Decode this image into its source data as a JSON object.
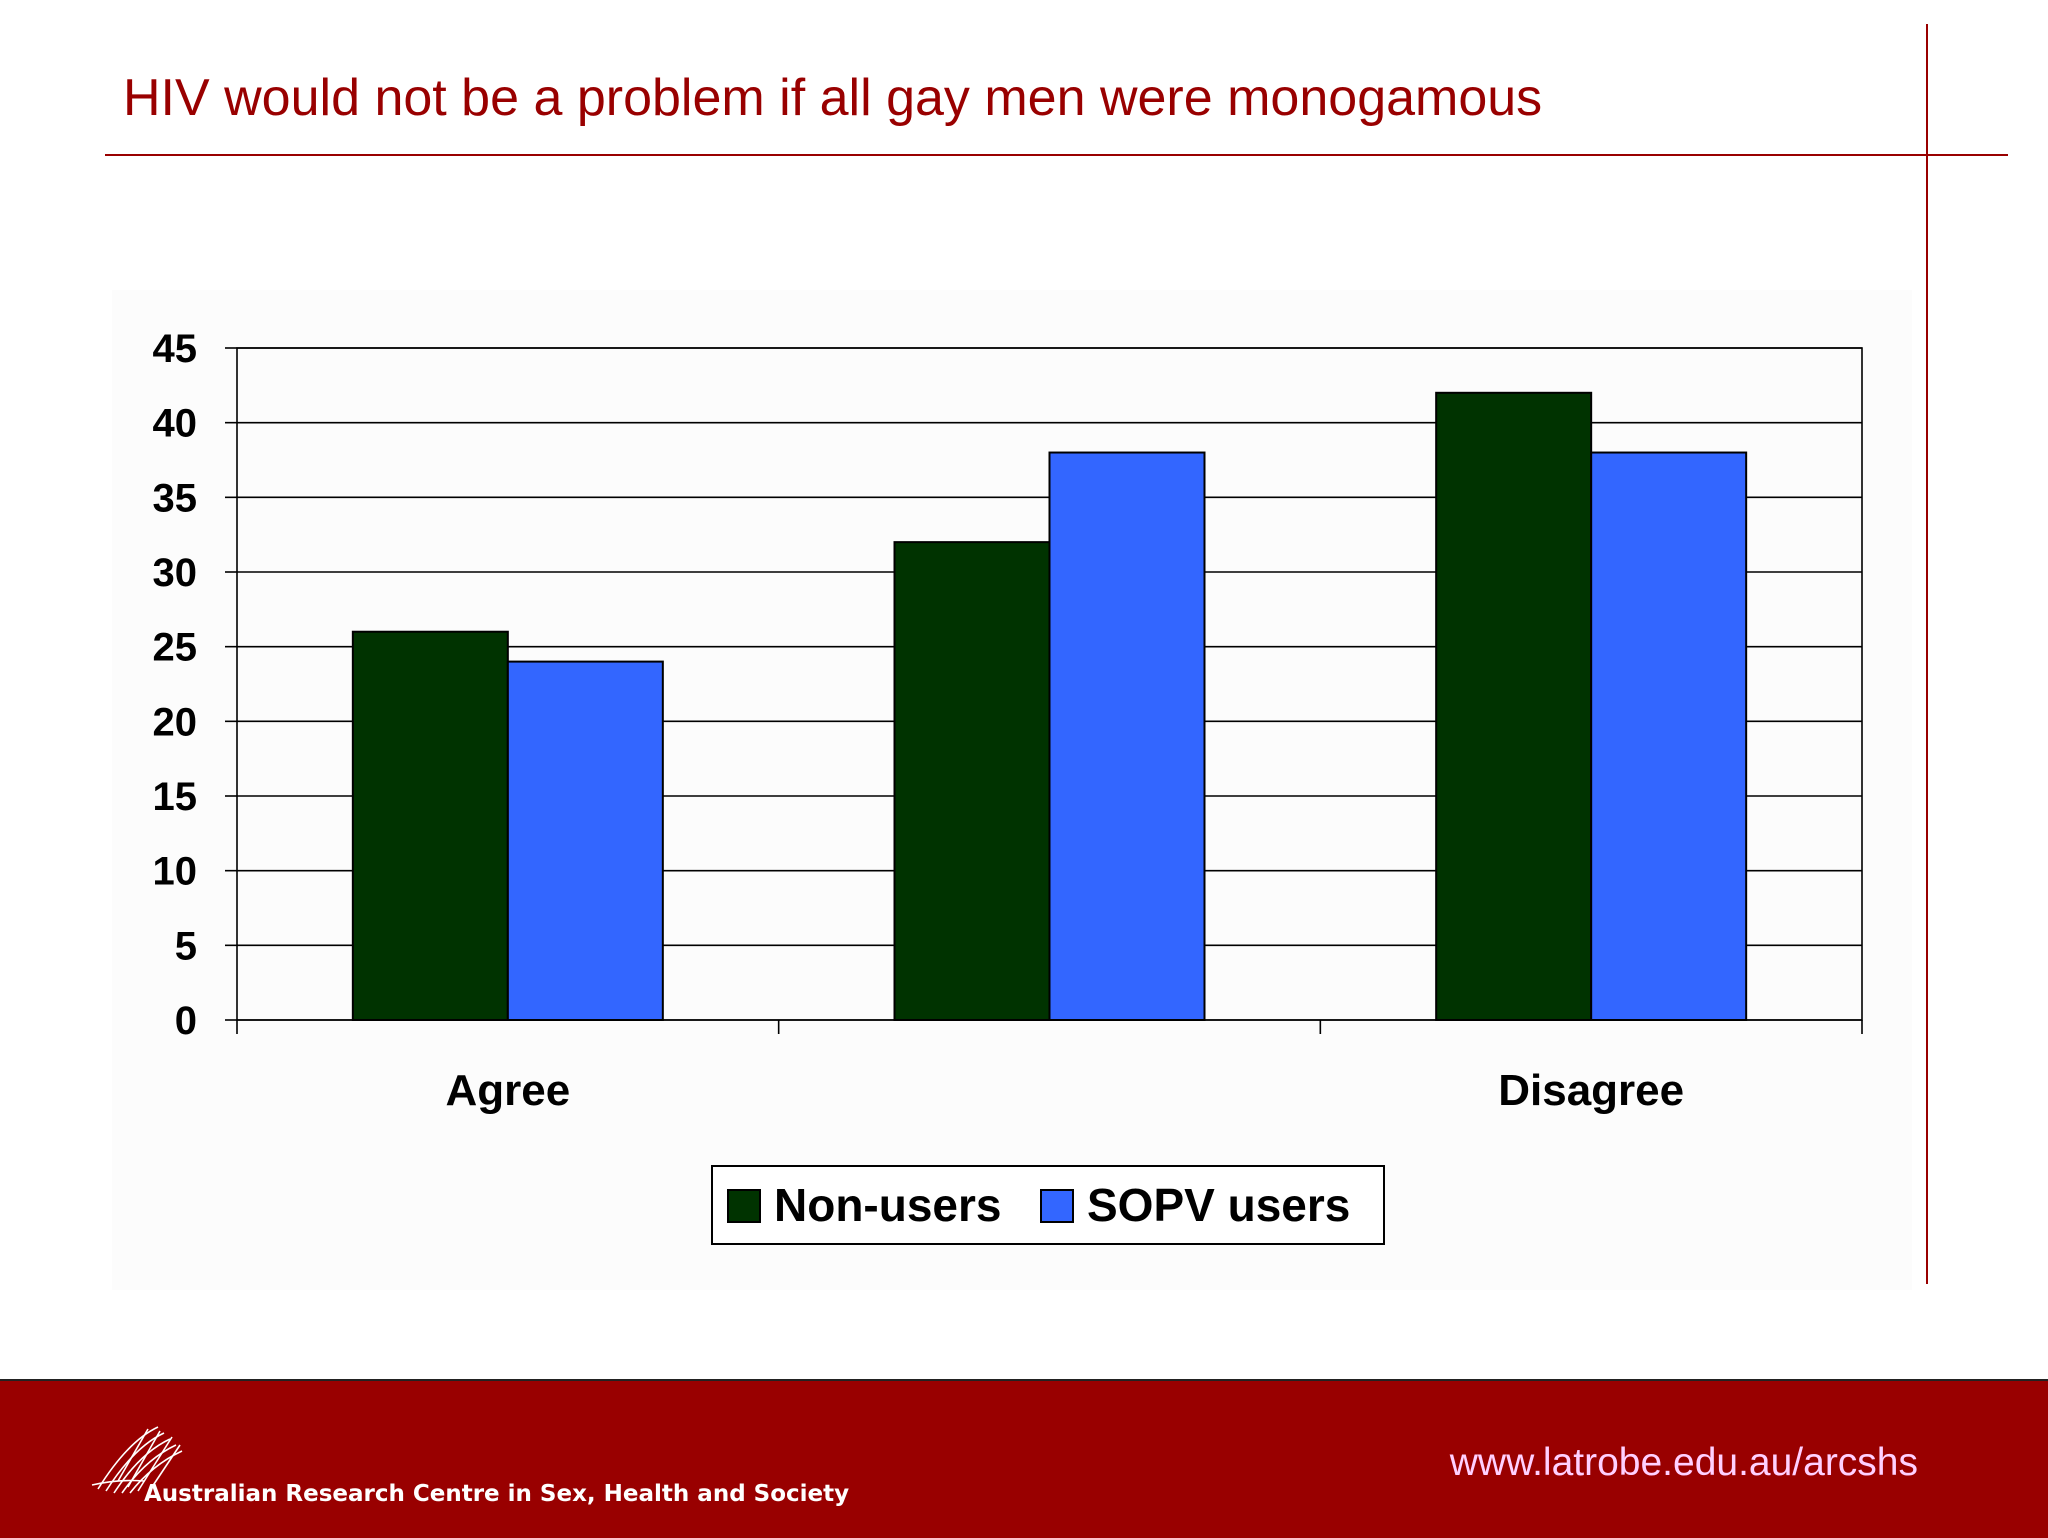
{
  "slide": {
    "title": "HIV would not be a problem if all gay men were monogamous"
  },
  "chart_data": {
    "type": "bar",
    "categories": [
      "Agree",
      "",
      "Disagree"
    ],
    "series": [
      {
        "name": "Non-users",
        "values": [
          26,
          32,
          42
        ],
        "color": "#003300"
      },
      {
        "name": "SOPV users",
        "values": [
          24,
          38,
          38
        ],
        "color": "#3366ff"
      }
    ],
    "yticks": [
      "0",
      "5",
      "10",
      "15",
      "20",
      "25",
      "30",
      "35",
      "40",
      "45"
    ],
    "ylim": [
      0,
      45
    ],
    "grid": true,
    "legend": "bottom-center"
  },
  "footer": {
    "organization": "Australian Research Centre in Sex, Health and Society",
    "url": "www.latrobe.edu.au/arcshs",
    "logo_icon": "arcshs-logo-icon"
  }
}
